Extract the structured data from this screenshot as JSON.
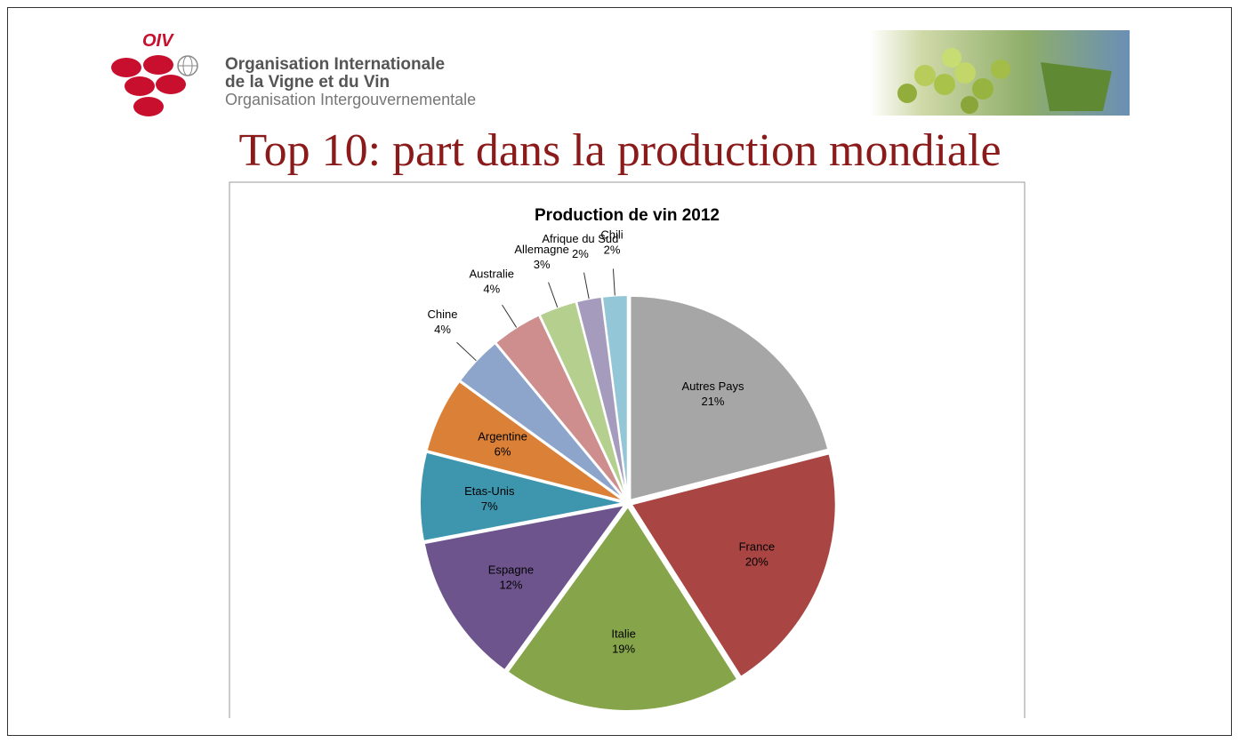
{
  "header": {
    "logo": "OIV",
    "org_line1": "Organisation Internationale",
    "org_line2": "de la Vigne et du Vin",
    "org_line3": "Organisation Intergouvernementale"
  },
  "slide_title": "Top 10: part dans la production mondiale",
  "chart_data": {
    "type": "pie",
    "title": "Production de vin  2012",
    "categories": [
      "Autres Pays",
      "France",
      "Italie",
      "Espagne",
      "Etas-Unis",
      "Argentine",
      "Chine",
      "Australie",
      "Allemagne",
      "Afrique du Sud",
      "Chili"
    ],
    "values": [
      21,
      20,
      19,
      12,
      7,
      6,
      4,
      4,
      3,
      2,
      2
    ],
    "value_labels": [
      "21%",
      "20%",
      "19%",
      "12%",
      "7%",
      "6%",
      "4%",
      "4%",
      "3%",
      "2%",
      "2%"
    ],
    "colors": [
      "#a6a6a6",
      "#a94543",
      "#86a44a",
      "#6e548d",
      "#3d96ae",
      "#da8137",
      "#8ea5cb",
      "#ce8e8d",
      "#b5cf8e",
      "#a59cbd",
      "#93c6d6"
    ]
  }
}
